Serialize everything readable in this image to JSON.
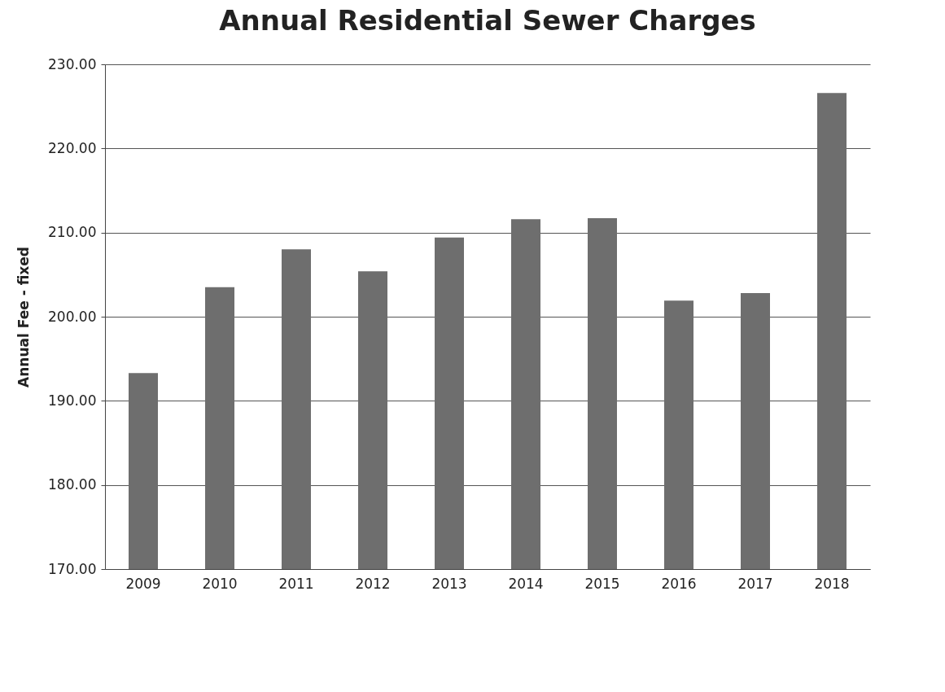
{
  "chart_data": {
    "type": "bar",
    "title": "Annual Residential Sewer Charges",
    "ylabel": "Annual Fee - fixed",
    "categories": [
      "2009",
      "2010",
      "2011",
      "2012",
      "2013",
      "2014",
      "2015",
      "2016",
      "2017",
      "2018"
    ],
    "values": [
      193.3,
      203.5,
      208.0,
      205.4,
      209.4,
      211.6,
      211.7,
      201.9,
      202.8,
      226.6
    ],
    "color": "#6e6e6e",
    "ylim": [
      170,
      230
    ],
    "yticks": [
      {
        "value": 170,
        "label": "170.00"
      },
      {
        "value": 180,
        "label": "180.00"
      },
      {
        "value": 190,
        "label": "190.00"
      },
      {
        "value": 200,
        "label": "200.00"
      },
      {
        "value": 210,
        "label": "210.00"
      },
      {
        "value": 220,
        "label": "220.00"
      },
      {
        "value": 230,
        "label": "230.00"
      }
    ],
    "grid": "y"
  }
}
